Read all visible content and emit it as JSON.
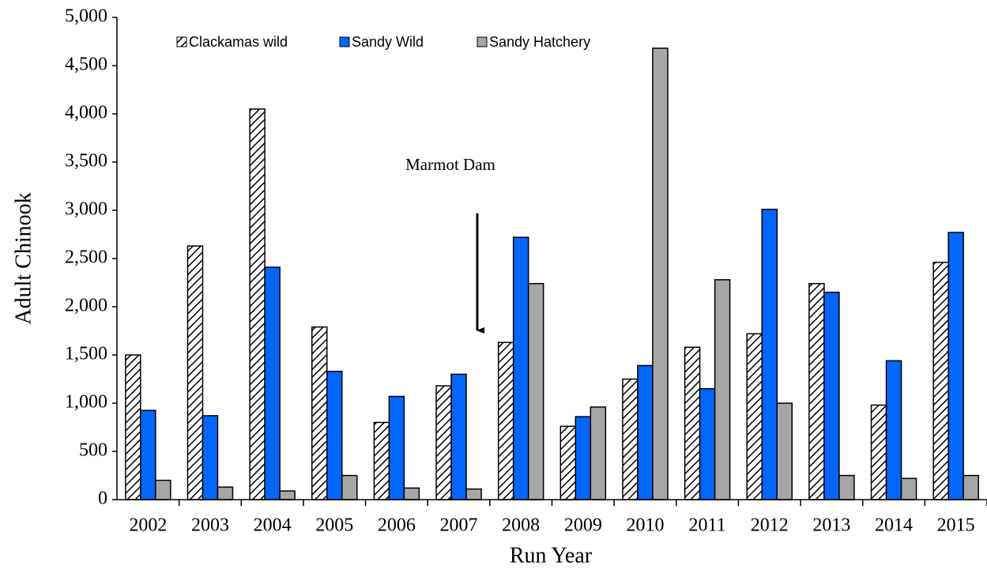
{
  "chart_data": {
    "type": "bar",
    "x_label": "Run Year",
    "y_label": "Adult Chinook",
    "annotation": "Marmot Dam",
    "categories": [
      "2002",
      "2003",
      "2004",
      "2005",
      "2006",
      "2007",
      "2008",
      "2009",
      "2010",
      "2011",
      "2012",
      "2013",
      "2014",
      "2015"
    ],
    "series": [
      {
        "name": "Clackamas wild",
        "color": "#ffffff",
        "pattern": "hatch",
        "values": [
          1500,
          2630,
          4050,
          1790,
          800,
          1180,
          1630,
          760,
          1250,
          1580,
          1720,
          2240,
          980,
          2460
        ]
      },
      {
        "name": "Sandy Wild",
        "color": "#0066ff",
        "values": [
          925,
          870,
          2410,
          1330,
          1070,
          1300,
          2720,
          860,
          1390,
          1150,
          3010,
          2150,
          1440,
          2770
        ]
      },
      {
        "name": "Sandy Hatchery",
        "color": "#a6a6a6",
        "values": [
          200,
          130,
          90,
          250,
          120,
          110,
          2240,
          960,
          4680,
          2280,
          1000,
          250,
          220,
          250
        ]
      }
    ],
    "ylim": [
      0,
      5000
    ],
    "yticks": [
      0,
      500,
      {
        "value": 1000,
        "label": "1,000"
      },
      {
        "value": 1500,
        "label": "1,500"
      },
      {
        "value": 2000,
        "label": "2,000"
      },
      {
        "value": 2500,
        "label": "2,500"
      },
      {
        "value": 3000,
        "label": "3,000"
      },
      {
        "value": 3500,
        "label": "3,500"
      },
      {
        "value": 4000,
        "label": "4,000"
      },
      {
        "value": 4500,
        "label": "4,500"
      },
      {
        "value": 5000,
        "label": "5,000"
      }
    ],
    "legend": "top"
  }
}
